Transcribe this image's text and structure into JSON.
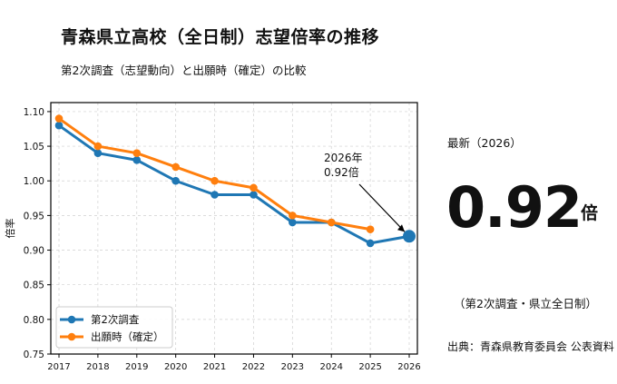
{
  "title": "青森県立高校（全日制）志望倍率の推移",
  "subtitle": "第2次調査（志望動向）と出願時（確定）の比較",
  "side_panel": {
    "latest_label": "最新（2026）",
    "latest_value": "0.92",
    "latest_unit": "倍",
    "note": "（第2次調査・県立全日制）",
    "source": "出典：青森県教育委員会 公表資料"
  },
  "chart_data": {
    "type": "line",
    "title": "",
    "xlabel": "",
    "ylabel": "倍率",
    "x": [
      2017,
      2018,
      2019,
      2020,
      2021,
      2022,
      2023,
      2024,
      2025,
      2026
    ],
    "x_tick_labels": [
      "2017",
      "2018",
      "2019",
      "2020",
      "2021",
      "2022",
      "2023",
      "2024",
      "2025",
      "2026"
    ],
    "y_ticks": [
      0.75,
      0.8,
      0.85,
      0.9,
      0.95,
      1.0,
      1.05,
      1.1
    ],
    "y_tick_labels": [
      "0.75",
      "0.80",
      "0.85",
      "0.90",
      "0.95",
      "1.00",
      "1.05",
      "1.10"
    ],
    "xlim": [
      2016.79,
      2026.21
    ],
    "ylim": [
      0.75,
      1.113
    ],
    "grid": true,
    "legend_placement": "lower-left",
    "series": [
      {
        "name": "第2次調査",
        "color": "#1f77b4",
        "values": [
          1.08,
          1.04,
          1.03,
          1.0,
          0.98,
          0.98,
          0.94,
          0.94,
          0.91,
          0.92
        ]
      },
      {
        "name": "出願時（確定）",
        "color": "#ff7f0e",
        "values": [
          1.09,
          1.05,
          1.04,
          1.02,
          1.0,
          0.99,
          0.95,
          0.94,
          0.93,
          null
        ]
      }
    ],
    "annotation": {
      "lines": [
        "2026年",
        "0.92倍"
      ],
      "x": 2026,
      "y": 0.92
    }
  }
}
